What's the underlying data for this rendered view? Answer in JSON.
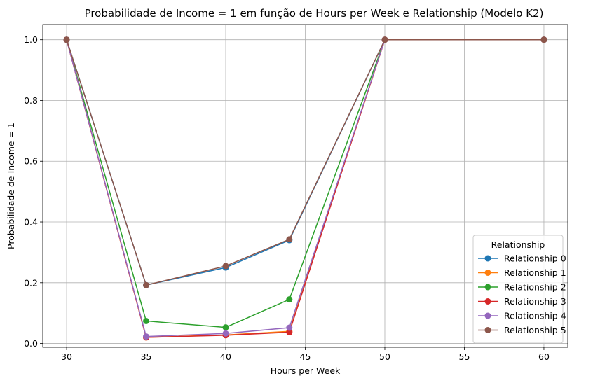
{
  "chart_data": {
    "type": "line",
    "title": "Probabilidade de Income = 1 em função de Hours per Week e Relationship (Modelo K2)",
    "xlabel": "Hours per Week",
    "ylabel": "Probabilidade de Income = 1",
    "x": [
      30,
      35,
      40,
      44,
      50,
      60
    ],
    "xlim": [
      28.5,
      61.5
    ],
    "ylim": [
      -0.0125,
      1.05
    ],
    "xticks": [
      30,
      35,
      40,
      45,
      50,
      55,
      60
    ],
    "yticks": [
      0.0,
      0.2,
      0.4,
      0.6,
      0.8,
      1.0
    ],
    "grid": true,
    "legend_title": "Relationship",
    "legend_position": "lower right",
    "series": [
      {
        "name": "Relationship 0",
        "color": "#1f77b4",
        "values": [
          1.0,
          0.192,
          0.25,
          0.34,
          1.0,
          1.0
        ]
      },
      {
        "name": "Relationship 1",
        "color": "#ff7f0e",
        "values": [
          1.0,
          0.02,
          0.028,
          0.04,
          1.0,
          1.0
        ]
      },
      {
        "name": "Relationship 2",
        "color": "#2ca02c",
        "values": [
          1.0,
          0.074,
          0.053,
          0.145,
          1.0,
          1.0
        ]
      },
      {
        "name": "Relationship 3",
        "color": "#d62728",
        "values": [
          1.0,
          0.02,
          0.027,
          0.037,
          1.0,
          1.0
        ]
      },
      {
        "name": "Relationship 4",
        "color": "#9467bd",
        "values": [
          1.0,
          0.023,
          0.033,
          0.052,
          1.0,
          1.0
        ]
      },
      {
        "name": "Relationship 5",
        "color": "#8c564b",
        "values": [
          1.0,
          0.192,
          0.255,
          0.343,
          1.0,
          1.0
        ]
      }
    ]
  }
}
